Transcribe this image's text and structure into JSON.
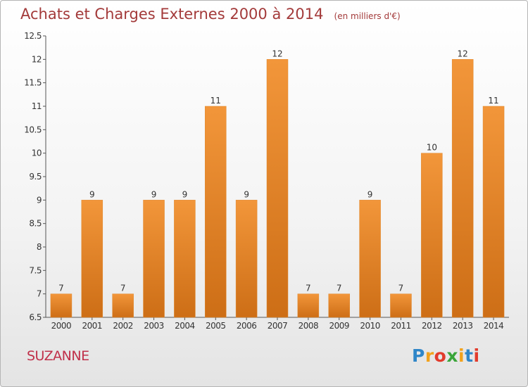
{
  "title": "Achats et Charges Externes 2000 à 2014",
  "unit_note": "(en milliers d'€)",
  "commune": "SUZANNE",
  "logo": {
    "letters": [
      "P",
      "r",
      "o",
      "x",
      "i",
      "t",
      "i"
    ],
    "colors": [
      "#2f86c8",
      "#f2a21c",
      "#e23b2c",
      "#3aa53a",
      "#f2a21c",
      "#2f86c8",
      "#e23b2c"
    ]
  },
  "colors": {
    "bar": "#f2963a",
    "bar_dark": "#cd6e16",
    "title": "#a33a3a",
    "commune": "#c0304a"
  },
  "chart_data": {
    "type": "bar",
    "title": "Achats et Charges Externes 2000 à 2014",
    "subtitle": "(en milliers d'€)",
    "categories": [
      "2000",
      "2001",
      "2002",
      "2003",
      "2004",
      "2005",
      "2006",
      "2007",
      "2008",
      "2009",
      "2010",
      "2011",
      "2012",
      "2013",
      "2014"
    ],
    "values": [
      7,
      9,
      7,
      9,
      9,
      11,
      9,
      12,
      7,
      7,
      9,
      7,
      10,
      12,
      11
    ],
    "ylim": [
      6.5,
      12.5
    ],
    "yticks": [
      6.5,
      7,
      7.5,
      8,
      8.5,
      9,
      9.5,
      10,
      10.5,
      11,
      11.5,
      12,
      12.5
    ],
    "ytick_labels": [
      "6.5",
      "7",
      "7.5",
      "8",
      "8.5",
      "9",
      "9.5",
      "10",
      "10.5",
      "11",
      "11.5",
      "12",
      "12.5"
    ],
    "grid": false,
    "legend": "none"
  }
}
